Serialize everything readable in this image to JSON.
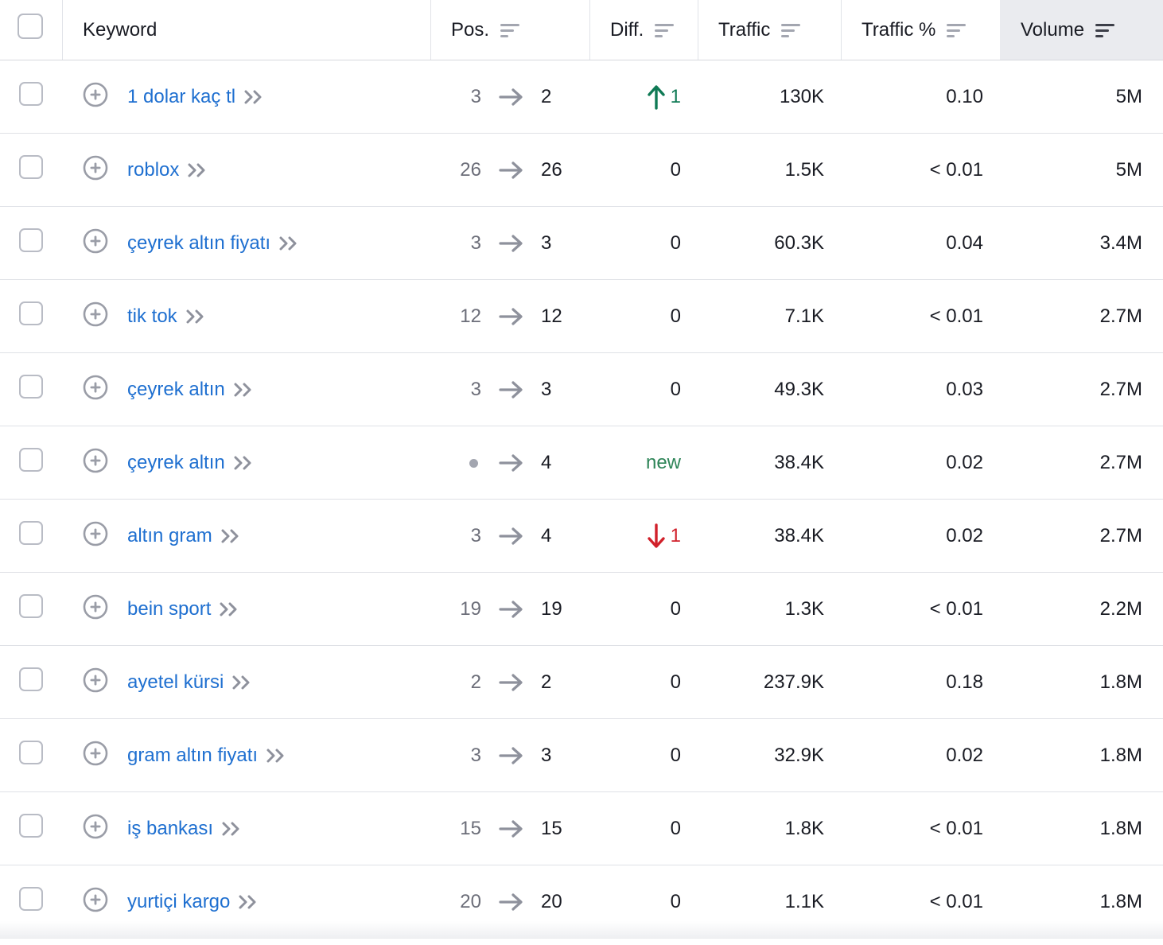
{
  "header": {
    "keyword": "Keyword",
    "pos": "Pos.",
    "diff": "Diff.",
    "traffic": "Traffic",
    "traffic_pct": "Traffic %",
    "volume": "Volume"
  },
  "rows": [
    {
      "keyword": "1 dolar kaç tl",
      "pos_from": "3",
      "pos_to": "2",
      "diff": "1",
      "diff_dir": "up",
      "traffic": "130K",
      "traffic_pct": "0.10",
      "volume": "5M"
    },
    {
      "keyword": "roblox",
      "pos_from": "26",
      "pos_to": "26",
      "diff": "0",
      "diff_dir": "none",
      "traffic": "1.5K",
      "traffic_pct": "< 0.01",
      "volume": "5M"
    },
    {
      "keyword": "çeyrek altın fiyatı",
      "pos_from": "3",
      "pos_to": "3",
      "diff": "0",
      "diff_dir": "none",
      "traffic": "60.3K",
      "traffic_pct": "0.04",
      "volume": "3.4M"
    },
    {
      "keyword": "tik tok",
      "pos_from": "12",
      "pos_to": "12",
      "diff": "0",
      "diff_dir": "none",
      "traffic": "7.1K",
      "traffic_pct": "< 0.01",
      "volume": "2.7M"
    },
    {
      "keyword": "çeyrek altın",
      "pos_from": "3",
      "pos_to": "3",
      "diff": "0",
      "diff_dir": "none",
      "traffic": "49.3K",
      "traffic_pct": "0.03",
      "volume": "2.7M"
    },
    {
      "keyword": "çeyrek altın",
      "pos_from": "",
      "pos_to": "4",
      "diff": "new",
      "diff_dir": "new",
      "traffic": "38.4K",
      "traffic_pct": "0.02",
      "volume": "2.7M"
    },
    {
      "keyword": "altın gram",
      "pos_from": "3",
      "pos_to": "4",
      "diff": "1",
      "diff_dir": "down",
      "traffic": "38.4K",
      "traffic_pct": "0.02",
      "volume": "2.7M"
    },
    {
      "keyword": "bein sport",
      "pos_from": "19",
      "pos_to": "19",
      "diff": "0",
      "diff_dir": "none",
      "traffic": "1.3K",
      "traffic_pct": "< 0.01",
      "volume": "2.2M"
    },
    {
      "keyword": "ayetel kürsi",
      "pos_from": "2",
      "pos_to": "2",
      "diff": "0",
      "diff_dir": "none",
      "traffic": "237.9K",
      "traffic_pct": "0.18",
      "volume": "1.8M"
    },
    {
      "keyword": "gram altın fiyatı",
      "pos_from": "3",
      "pos_to": "3",
      "diff": "0",
      "diff_dir": "none",
      "traffic": "32.9K",
      "traffic_pct": "0.02",
      "volume": "1.8M"
    },
    {
      "keyword": "iş bankası",
      "pos_from": "15",
      "pos_to": "15",
      "diff": "0",
      "diff_dir": "none",
      "traffic": "1.8K",
      "traffic_pct": "< 0.01",
      "volume": "1.8M"
    },
    {
      "keyword": "yurtiçi kargo",
      "pos_from": "20",
      "pos_to": "20",
      "diff": "0",
      "diff_dir": "none",
      "traffic": "1.1K",
      "traffic_pct": "< 0.01",
      "volume": "1.8M"
    }
  ],
  "colors": {
    "link": "#1e6fd0",
    "up": "#0f7a55",
    "down": "#d1202a",
    "new": "#2e8558",
    "sorted_header_bg": "#eaebef"
  },
  "icons": {
    "sort": "sort-lines-icon",
    "add": "plus-circle-icon",
    "more": "double-chevron-right-icon",
    "pos_change": "arrow-right-icon"
  }
}
